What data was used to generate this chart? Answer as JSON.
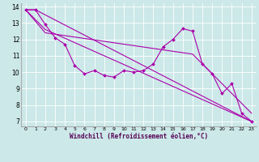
{
  "background_color": "#cce8e8",
  "grid_color": "#ffffff",
  "line_color": "#aa00aa",
  "marker_color": "#aa00aa",
  "xlabel": "Windchill (Refroidissement éolien,°C)",
  "xlim": [
    -0.5,
    23.5
  ],
  "ylim": [
    6.7,
    14.2
  ],
  "yticks": [
    7,
    8,
    9,
    10,
    11,
    12,
    13,
    14
  ],
  "xticks": [
    0,
    1,
    2,
    3,
    4,
    5,
    6,
    7,
    8,
    9,
    10,
    11,
    12,
    13,
    14,
    15,
    16,
    17,
    18,
    19,
    20,
    21,
    22,
    23
  ],
  "curve1_x": [
    0,
    1,
    2,
    3,
    4,
    5,
    6,
    7,
    8,
    9,
    10,
    11,
    12,
    13,
    14,
    15,
    16,
    17,
    18,
    19,
    20,
    21,
    22,
    23
  ],
  "curve1_y": [
    13.8,
    13.8,
    12.9,
    12.1,
    11.7,
    10.4,
    9.9,
    10.1,
    9.8,
    9.7,
    10.1,
    10.0,
    10.1,
    10.5,
    11.55,
    12.0,
    12.65,
    12.5,
    10.5,
    9.9,
    8.7,
    9.3,
    7.5,
    7.0
  ],
  "curve2_x": [
    0,
    1,
    23
  ],
  "curve2_y": [
    13.8,
    13.8,
    7.0
  ],
  "curve3_x": [
    0,
    2,
    23
  ],
  "curve3_y": [
    13.8,
    12.6,
    7.0
  ],
  "curve4_x": [
    0,
    2,
    17,
    23
  ],
  "curve4_y": [
    13.8,
    12.4,
    11.1,
    7.5
  ]
}
